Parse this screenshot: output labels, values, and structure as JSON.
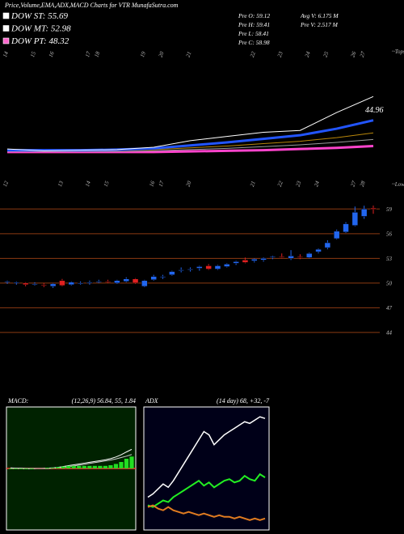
{
  "header": {
    "title": "Price,Volume,EMA,ADX,MACD Charts for VTR MunafaSutra.com",
    "dow": [
      "DOW ST: 55.69",
      "DOW MT: 52.98",
      "DOW PT: 48.32"
    ],
    "dow_colors": [
      "#ffffff",
      "#ffffff",
      "#ff66cc"
    ],
    "stats": [
      "Pre O: 59.12",
      "Avg V: 6.175 M",
      "Pre H: 59.41",
      "Pre V: 2.517 M",
      "Pre L: 58.41",
      "Pre C: 58.98"
    ]
  },
  "chart_data": [
    {
      "type": "line",
      "corner_label": "~Tops",
      "annotation": "44.96",
      "x": [
        0,
        4,
        8,
        12,
        16,
        20,
        24,
        28,
        32,
        36,
        40
      ],
      "xlim": [
        0,
        40
      ],
      "xticks": [
        {
          "value": 0,
          "label": "14"
        },
        {
          "value": 3,
          "label": "15"
        },
        {
          "value": 5,
          "label": "16"
        },
        {
          "value": 9,
          "label": "17"
        },
        {
          "value": 10,
          "label": "18"
        },
        {
          "value": 15,
          "label": "19"
        },
        {
          "value": 17,
          "label": "20"
        },
        {
          "value": 20,
          "label": "21"
        },
        {
          "value": 27,
          "label": "22"
        },
        {
          "value": 30,
          "label": "23"
        },
        {
          "value": 33,
          "label": "24"
        },
        {
          "value": 35,
          "label": "25"
        },
        {
          "value": 38,
          "label": "26"
        },
        {
          "value": 39,
          "label": "27"
        }
      ],
      "ylim": [
        44,
        67
      ],
      "series": [
        {
          "color": "#ffffff",
          "values": [
            50.2,
            49.9,
            50.0,
            50.1,
            50.5,
            51.6,
            52.3,
            53.0,
            53.3,
            56.3,
            58.98
          ]
        },
        {
          "color": "#2255ff",
          "values": [
            50.0,
            50.0,
            50.0,
            50.1,
            50.3,
            50.8,
            51.3,
            51.9,
            52.5,
            53.6,
            55.0
          ]
        },
        {
          "color": "#b8860b",
          "values": [
            49.9,
            49.9,
            49.9,
            50.0,
            50.1,
            50.4,
            50.7,
            51.1,
            51.5,
            52.1,
            52.9
          ]
        },
        {
          "color": "#999999",
          "values": [
            49.8,
            49.8,
            49.8,
            49.8,
            49.9,
            50.1,
            50.3,
            50.6,
            50.9,
            51.3,
            51.8
          ]
        },
        {
          "color": "#ff44cc",
          "values": [
            49.7,
            49.7,
            49.7,
            49.7,
            49.7,
            49.8,
            49.9,
            50.0,
            50.2,
            50.4,
            50.7
          ]
        }
      ]
    },
    {
      "type": "candlestick",
      "corner_label": "~Lows",
      "categories": [
        "12",
        null,
        null,
        null,
        null,
        null,
        "13",
        null,
        null,
        "14",
        null,
        "15",
        null,
        null,
        null,
        null,
        "16",
        "17",
        null,
        null,
        "20",
        null,
        null,
        null,
        null,
        null,
        null,
        "21",
        null,
        null,
        "22",
        null,
        "23",
        null,
        "24",
        null,
        null,
        null,
        "27",
        "28",
        null
      ],
      "open": [
        50.1,
        50.0,
        50.0,
        49.9,
        49.8,
        49.6,
        50.3,
        49.8,
        49.9,
        50.0,
        50.1,
        50.2,
        50.0,
        50.2,
        50.5,
        49.6,
        50.4,
        50.7,
        51.0,
        51.5,
        51.6,
        51.8,
        52.1,
        51.7,
        52.0,
        52.4,
        52.8,
        52.7,
        52.8,
        53.1,
        53.2,
        53.0,
        53.2,
        53.1,
        53.8,
        54.3,
        55.4,
        56.2,
        57.0,
        58.1,
        59.12
      ],
      "high": [
        50.3,
        50.2,
        50.1,
        50.1,
        50.0,
        50.0,
        50.5,
        50.2,
        50.2,
        50.3,
        50.4,
        50.4,
        50.4,
        50.7,
        50.6,
        50.4,
        51.0,
        51.0,
        51.5,
        51.9,
        51.9,
        52.1,
        52.3,
        52.2,
        52.4,
        52.7,
        53.1,
        53.0,
        53.1,
        53.3,
        53.6,
        54.0,
        53.5,
        53.7,
        54.2,
        55.2,
        56.5,
        57.4,
        59.3,
        59.4,
        59.41
      ],
      "low": [
        49.9,
        49.8,
        49.6,
        49.7,
        49.5,
        49.4,
        49.6,
        49.7,
        49.8,
        49.8,
        50.0,
        50.0,
        49.9,
        50.1,
        49.9,
        49.5,
        50.3,
        50.5,
        50.9,
        51.3,
        51.4,
        51.5,
        51.6,
        51.6,
        51.9,
        52.2,
        52.4,
        52.5,
        52.6,
        52.9,
        53.0,
        52.8,
        52.9,
        53.0,
        53.6,
        54.1,
        55.3,
        56.1,
        56.9,
        57.8,
        58.41
      ],
      "close": [
        50.2,
        50.1,
        49.8,
        49.9,
        49.7,
        49.9,
        49.7,
        50.1,
        50.0,
        50.1,
        50.2,
        50.1,
        50.3,
        50.5,
        50.0,
        50.3,
        50.8,
        50.8,
        51.4,
        51.6,
        51.7,
        52.0,
        51.7,
        52.1,
        52.3,
        52.6,
        52.5,
        52.9,
        53.0,
        53.2,
        53.1,
        53.3,
        53.1,
        53.6,
        54.1,
        54.9,
        56.3,
        57.2,
        58.6,
        59.0,
        58.98
      ],
      "up_color": "#2266ee",
      "down_color": "#e02020",
      "grid_color": "#8b3a12",
      "ylim": [
        37.2,
        60.8
      ],
      "yticks": [
        59,
        56,
        53,
        50,
        47,
        44
      ]
    },
    {
      "type": "macd",
      "title": "MACD:",
      "subtitle": "(12,26,9) 56.84, 55, 1.84",
      "background": "#002200",
      "zero_color": "#ff3333",
      "ylim": [
        28,
        72
      ],
      "y2lim": [
        -9.5,
        9.5
      ],
      "series": [
        {
          "color": "#ffffff",
          "values": [
            50.1,
            50.0,
            50.0,
            49.9,
            49.9,
            50.0,
            50.0,
            50.1,
            50.2,
            50.4,
            50.7,
            51.0,
            51.3,
            51.6,
            51.9,
            52.2,
            52.5,
            52.8,
            53.1,
            53.5,
            54.1,
            54.9,
            55.9,
            56.84
          ]
        },
        {
          "color": "#cccccc",
          "values": [
            50.2,
            50.1,
            50.1,
            50.0,
            50.0,
            50.0,
            50.0,
            50.0,
            50.1,
            50.2,
            50.4,
            50.6,
            50.9,
            51.2,
            51.5,
            51.8,
            52.1,
            52.4,
            52.7,
            53.0,
            53.4,
            53.9,
            54.4,
            55.0
          ]
        },
        {
          "color": "#22dd22",
          "axis": "y2",
          "values": [
            -0.1,
            -0.1,
            -0.1,
            -0.1,
            -0.1,
            0,
            0,
            0.1,
            0.1,
            0.2,
            0.3,
            0.4,
            0.4,
            0.4,
            0.4,
            0.4,
            0.4,
            0.4,
            0.4,
            0.5,
            0.7,
            1.0,
            1.5,
            1.84
          ]
        }
      ]
    },
    {
      "type": "adx",
      "title": "ADX",
      "subtitle": "(14 day) 68, +32, -7",
      "background": "#000018",
      "ylim": [
        0,
        75
      ],
      "series": [
        {
          "color": "#ffffff",
          "values": [
            20,
            22,
            25,
            28,
            26,
            30,
            35,
            40,
            45,
            50,
            55,
            60,
            58,
            52,
            55,
            58,
            60,
            62,
            64,
            66,
            65,
            67,
            69,
            68
          ]
        },
        {
          "color": "#22ee22",
          "values": [
            15,
            14,
            16,
            18,
            17,
            20,
            22,
            24,
            26,
            28,
            30,
            27,
            29,
            26,
            28,
            30,
            31,
            29,
            30,
            33,
            31,
            30,
            34,
            32
          ]
        },
        {
          "color": "#e07b20",
          "values": [
            14,
            15,
            13,
            12,
            14,
            12,
            11,
            10,
            11,
            10,
            9,
            10,
            9,
            8,
            9,
            8,
            8,
            7,
            8,
            7,
            6,
            7,
            6,
            7
          ]
        }
      ]
    }
  ]
}
